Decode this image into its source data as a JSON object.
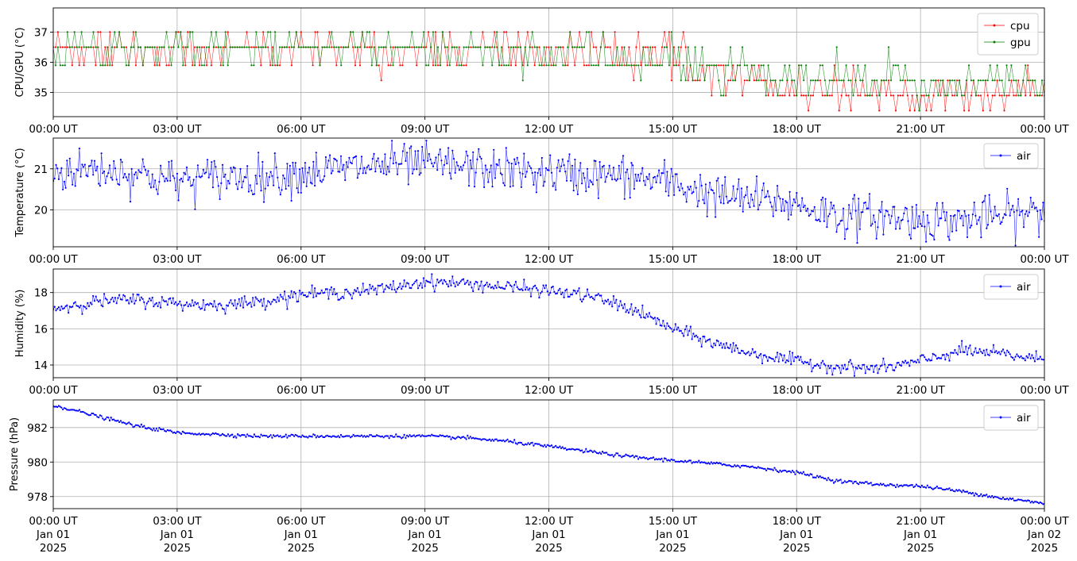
{
  "colors": {
    "cpu": "#ff0000",
    "gpu": "#008000",
    "air": "#0000ff",
    "grid": "#b0b0b0"
  },
  "x_ticks": [
    "00:00 UT",
    "03:00 UT",
    "06:00 UT",
    "09:00 UT",
    "12:00 UT",
    "15:00 UT",
    "18:00 UT",
    "21:00 UT",
    "00:00 UT"
  ],
  "x_ticks_bottom_date": [
    "Jan 01",
    "Jan 01",
    "Jan 01",
    "Jan 01",
    "Jan 01",
    "Jan 01",
    "Jan 01",
    "Jan 01",
    "Jan 02"
  ],
  "x_ticks_bottom_year": [
    "2025",
    "2025",
    "2025",
    "2025",
    "2025",
    "2025",
    "2025",
    "2025",
    "2025"
  ],
  "chart_data": [
    {
      "type": "line",
      "ylabel": "CPU/GPU (°C)",
      "xlim": [
        "2025-01-01 00:00 UT",
        "2025-01-02 00:00 UT"
      ],
      "ylim": [
        34.2,
        37.8
      ],
      "yticks": [
        35,
        36,
        37
      ],
      "grid": true,
      "legend": "top-right",
      "x": [
        "00:00 UT",
        "03:00 UT",
        "06:00 UT",
        "09:00 UT",
        "12:00 UT",
        "15:00 UT",
        "16:30 UT",
        "18:00 UT",
        "21:00 UT",
        "00:00 UT"
      ],
      "series": [
        {
          "name": "cpu",
          "color": "#ff0000",
          "values": [
            36.4,
            36.4,
            36.4,
            36.4,
            36.4,
            36.1,
            35.6,
            35.1,
            34.9,
            34.9
          ]
        },
        {
          "name": "gpu",
          "color": "#008000",
          "values": [
            36.4,
            36.4,
            36.4,
            36.4,
            36.3,
            35.9,
            35.6,
            35.3,
            35.3,
            35.3
          ]
        }
      ]
    },
    {
      "type": "line",
      "ylabel": "Temperature (°C)",
      "xlim": [
        "2025-01-01 00:00 UT",
        "2025-01-02 00:00 UT"
      ],
      "ylim": [
        19.1,
        21.75
      ],
      "yticks": [
        20,
        21
      ],
      "grid": true,
      "legend": "top-right",
      "x": [
        "00:00 UT",
        "01:00 UT",
        "02:00 UT",
        "03:00 UT",
        "04:00 UT",
        "05:00 UT",
        "06:00 UT",
        "07:00 UT",
        "08:00 UT",
        "09:00 UT",
        "10:00 UT",
        "11:00 UT",
        "12:00 UT",
        "13:00 UT",
        "14:00 UT",
        "15:00 UT",
        "16:00 UT",
        "17:00 UT",
        "18:00 UT",
        "19:00 UT",
        "20:00 UT",
        "21:00 UT",
        "22:00 UT",
        "23:00 UT",
        "00:00 UT"
      ],
      "series": [
        {
          "name": "air",
          "color": "#0000ff",
          "values": [
            20.9,
            21.0,
            20.9,
            20.7,
            20.8,
            20.8,
            20.9,
            21.0,
            21.1,
            21.1,
            21.05,
            20.95,
            20.9,
            20.85,
            20.8,
            20.65,
            20.35,
            20.25,
            20.15,
            19.85,
            19.85,
            19.75,
            19.75,
            19.85,
            19.95
          ]
        }
      ]
    },
    {
      "type": "line",
      "ylabel": "Humidity (%)",
      "xlim": [
        "2025-01-01 00:00 UT",
        "2025-01-02 00:00 UT"
      ],
      "ylim": [
        13.3,
        19.3
      ],
      "yticks": [
        14,
        16,
        18
      ],
      "grid": true,
      "legend": "top-right",
      "x": [
        "00:00 UT",
        "01:00 UT",
        "02:00 UT",
        "03:00 UT",
        "04:00 UT",
        "05:00 UT",
        "06:00 UT",
        "07:00 UT",
        "08:00 UT",
        "09:00 UT",
        "10:00 UT",
        "11:00 UT",
        "12:00 UT",
        "13:00 UT",
        "14:00 UT",
        "15:00 UT",
        "16:00 UT",
        "17:00 UT",
        "18:00 UT",
        "19:00 UT",
        "20:00 UT",
        "21:00 UT",
        "22:00 UT",
        "23:00 UT",
        "00:00 UT"
      ],
      "series": [
        {
          "name": "air",
          "color": "#0000ff",
          "values": [
            17.1,
            17.5,
            17.6,
            17.4,
            17.3,
            17.5,
            17.9,
            18.0,
            18.2,
            18.6,
            18.5,
            18.3,
            18.1,
            17.8,
            17.1,
            16.0,
            15.2,
            14.6,
            14.2,
            13.9,
            13.8,
            14.2,
            14.8,
            14.6,
            14.3
          ]
        }
      ]
    },
    {
      "type": "line",
      "ylabel": "Pressure (hPa)",
      "xlim": [
        "2025-01-01 00:00 UT",
        "2025-01-02 00:00 UT"
      ],
      "ylim": [
        977.3,
        983.6
      ],
      "yticks": [
        978,
        980,
        982
      ],
      "grid": true,
      "legend": "top-right",
      "x": [
        "00:00 UT",
        "01:00 UT",
        "02:00 UT",
        "03:00 UT",
        "04:00 UT",
        "05:00 UT",
        "06:00 UT",
        "07:00 UT",
        "08:00 UT",
        "09:00 UT",
        "10:00 UT",
        "11:00 UT",
        "12:00 UT",
        "13:00 UT",
        "14:00 UT",
        "15:00 UT",
        "16:00 UT",
        "17:00 UT",
        "18:00 UT",
        "19:00 UT",
        "20:00 UT",
        "21:00 UT",
        "22:00 UT",
        "23:00 UT",
        "00:00 UT"
      ],
      "series": [
        {
          "name": "air",
          "color": "#0000ff",
          "values": [
            983.3,
            982.7,
            982.1,
            981.7,
            981.6,
            981.5,
            981.5,
            981.5,
            981.5,
            981.5,
            981.4,
            981.2,
            980.9,
            980.6,
            980.3,
            980.1,
            979.9,
            979.7,
            979.4,
            978.9,
            978.7,
            978.6,
            978.3,
            977.9,
            977.6
          ]
        }
      ]
    }
  ]
}
